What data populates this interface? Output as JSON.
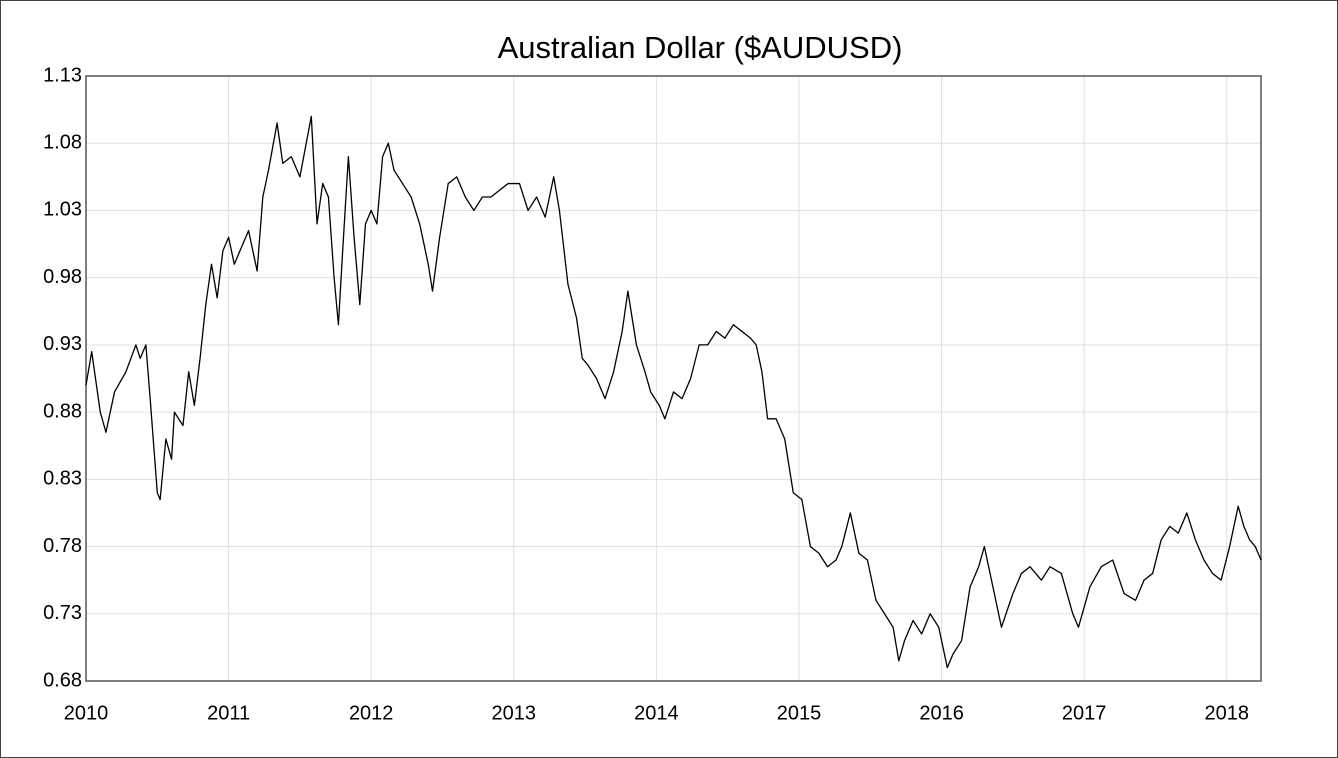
{
  "chart_data": {
    "type": "line",
    "title": "Australian Dollar ($AUDUSD)",
    "xlim": [
      2010,
      2018.24
    ],
    "xticks": [
      2010,
      2011,
      2012,
      2013,
      2014,
      2015,
      2016,
      2017,
      2018
    ],
    "ylim": [
      0.68,
      1.13
    ],
    "yticks": [
      0.68,
      0.73,
      0.78,
      0.83,
      0.88,
      0.93,
      0.98,
      1.03,
      1.08,
      1.13
    ],
    "grid": true,
    "series": [
      {
        "color": "#000000",
        "x": [
          2010.0,
          2010.04,
          2010.1,
          2010.14,
          2010.2,
          2010.28,
          2010.35,
          2010.38,
          2010.42,
          2010.45,
          2010.5,
          2010.52,
          2010.56,
          2010.6,
          2010.62,
          2010.68,
          2010.72,
          2010.76,
          2010.8,
          2010.84,
          2010.88,
          2010.92,
          2010.96,
          2011.0,
          2011.04,
          2011.08,
          2011.14,
          2011.2,
          2011.24,
          2011.28,
          2011.34,
          2011.38,
          2011.44,
          2011.5,
          2011.58,
          2011.62,
          2011.66,
          2011.7,
          2011.74,
          2011.77,
          2011.8,
          2011.84,
          2011.88,
          2011.92,
          2011.96,
          2012.0,
          2012.04,
          2012.08,
          2012.12,
          2012.16,
          2012.22,
          2012.28,
          2012.34,
          2012.4,
          2012.43,
          2012.48,
          2012.54,
          2012.6,
          2012.66,
          2012.72,
          2012.78,
          2012.84,
          2012.9,
          2012.96,
          2013.04,
          2013.1,
          2013.16,
          2013.22,
          2013.28,
          2013.32,
          2013.38,
          2013.44,
          2013.48,
          2013.52,
          2013.58,
          2013.64,
          2013.7,
          2013.76,
          2013.8,
          2013.86,
          2013.92,
          2013.96,
          2014.02,
          2014.06,
          2014.12,
          2014.18,
          2014.24,
          2014.3,
          2014.36,
          2014.42,
          2014.48,
          2014.54,
          2014.6,
          2014.66,
          2014.7,
          2014.74,
          2014.78,
          2014.84,
          2014.9,
          2014.96,
          2015.02,
          2015.08,
          2015.14,
          2015.2,
          2015.26,
          2015.3,
          2015.36,
          2015.42,
          2015.48,
          2015.54,
          2015.6,
          2015.66,
          2015.7,
          2015.74,
          2015.8,
          2015.86,
          2015.92,
          2015.98,
          2016.04,
          2016.08,
          2016.14,
          2016.2,
          2016.26,
          2016.3,
          2016.36,
          2016.42,
          2016.5,
          2016.56,
          2016.62,
          2016.7,
          2016.76,
          2016.84,
          2016.92,
          2016.96,
          2017.04,
          2017.12,
          2017.2,
          2017.28,
          2017.36,
          2017.42,
          2017.48,
          2017.54,
          2017.6,
          2017.66,
          2017.72,
          2017.78,
          2017.84,
          2017.9,
          2017.96,
          2018.02,
          2018.08,
          2018.12,
          2018.16,
          2018.2,
          2018.24
        ],
        "values": [
          0.9,
          0.925,
          0.88,
          0.865,
          0.895,
          0.91,
          0.93,
          0.92,
          0.93,
          0.89,
          0.82,
          0.815,
          0.86,
          0.845,
          0.88,
          0.87,
          0.91,
          0.885,
          0.92,
          0.96,
          0.99,
          0.965,
          1.0,
          1.01,
          0.99,
          1.0,
          1.015,
          0.985,
          1.04,
          1.06,
          1.095,
          1.065,
          1.07,
          1.055,
          1.1,
          1.02,
          1.05,
          1.04,
          0.98,
          0.945,
          1.0,
          1.07,
          1.01,
          0.96,
          1.02,
          1.03,
          1.02,
          1.07,
          1.08,
          1.06,
          1.05,
          1.04,
          1.02,
          0.99,
          0.97,
          1.01,
          1.05,
          1.055,
          1.04,
          1.03,
          1.04,
          1.04,
          1.045,
          1.05,
          1.05,
          1.03,
          1.04,
          1.025,
          1.055,
          1.03,
          0.975,
          0.95,
          0.92,
          0.915,
          0.905,
          0.89,
          0.91,
          0.94,
          0.97,
          0.93,
          0.91,
          0.895,
          0.885,
          0.875,
          0.895,
          0.89,
          0.905,
          0.93,
          0.93,
          0.94,
          0.935,
          0.945,
          0.94,
          0.935,
          0.93,
          0.91,
          0.875,
          0.875,
          0.86,
          0.82,
          0.815,
          0.78,
          0.775,
          0.765,
          0.77,
          0.78,
          0.805,
          0.775,
          0.77,
          0.74,
          0.73,
          0.72,
          0.695,
          0.71,
          0.725,
          0.715,
          0.73,
          0.72,
          0.69,
          0.7,
          0.71,
          0.75,
          0.765,
          0.78,
          0.75,
          0.72,
          0.745,
          0.76,
          0.765,
          0.755,
          0.765,
          0.76,
          0.73,
          0.72,
          0.75,
          0.765,
          0.77,
          0.745,
          0.74,
          0.755,
          0.76,
          0.785,
          0.795,
          0.79,
          0.805,
          0.785,
          0.77,
          0.76,
          0.755,
          0.78,
          0.81,
          0.795,
          0.785,
          0.78,
          0.77
        ]
      }
    ]
  }
}
